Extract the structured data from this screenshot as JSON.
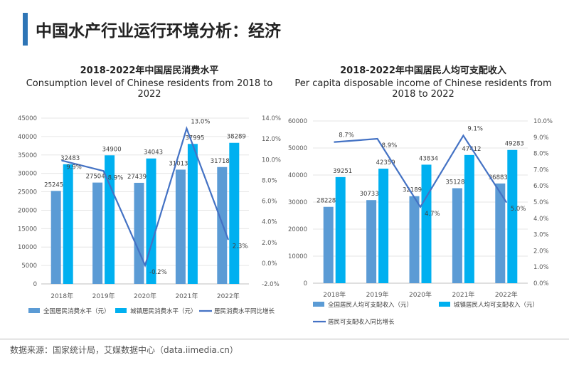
{
  "page_title": "中国水产行业运行环境分析：经济",
  "source": "数据来源：国家统计局，艾媒数据中心（data.iimedia.cn）",
  "colors": {
    "accent": "#2e75b6",
    "bar_national": "#5b9bd5",
    "bar_urban": "#00b0f0",
    "line": "#4472c4"
  },
  "chart_data": [
    {
      "type": "bar",
      "title": "2018-2022年中国居民消费水平",
      "subtitle": "Consumption level of Chinese residents from 2018 to 2022",
      "categories": [
        "2018年",
        "2019年",
        "2020年",
        "2021年",
        "2022年"
      ],
      "series": [
        {
          "name": "全国居民消费水平（元）",
          "type": "bar",
          "axis": "left",
          "values": [
            25245,
            27504,
            27439,
            31013,
            31718
          ]
        },
        {
          "name": "城镇居民消费水平（元）",
          "type": "bar",
          "axis": "left",
          "values": [
            32483,
            34900,
            34043,
            37995,
            38289
          ]
        },
        {
          "name": "居民消费水平同比增长",
          "type": "line",
          "axis": "right",
          "values": [
            9.9,
            8.9,
            -0.2,
            13.0,
            2.3
          ],
          "labels": [
            "9.9%",
            "8.9%",
            "-0.2%",
            "13.0%",
            "2.3%"
          ]
        }
      ],
      "ylim": [
        0,
        45000
      ],
      "yticks": [
        "0",
        "5000",
        "10000",
        "15000",
        "20000",
        "25000",
        "30000",
        "35000",
        "40000",
        "45000"
      ],
      "y2lim": [
        -2,
        14
      ],
      "y2ticks": [
        "-2.0%",
        "0.0%",
        "2.0%",
        "4.0%",
        "6.0%",
        "8.0%",
        "10.0%",
        "12.0%",
        "14.0%"
      ],
      "grid": true,
      "legend": "bottom"
    },
    {
      "type": "bar",
      "title": "2018-2022年中国居民人均可支配收入",
      "subtitle": "Per capita disposable income of Chinese residents from 2018 to 2022",
      "categories": [
        "2018年",
        "2019年",
        "2020年",
        "2021年",
        "2022年"
      ],
      "series": [
        {
          "name": "全国居民人均可支配收入（元）",
          "type": "bar",
          "axis": "left",
          "values": [
            28228,
            30733,
            32189,
            35128,
            36883
          ]
        },
        {
          "name": "城镇居民人均可支配收入（元）",
          "type": "bar",
          "axis": "left",
          "values": [
            39251,
            42359,
            43834,
            47412,
            49283
          ]
        },
        {
          "name": "居民可支配收入同比增长",
          "type": "line",
          "axis": "right",
          "values": [
            8.7,
            8.9,
            4.7,
            9.1,
            5.0
          ],
          "labels": [
            "8.7%",
            "8.9%",
            "4.7%",
            "9.1%",
            "5.0%"
          ]
        }
      ],
      "ylim": [
        0,
        60000
      ],
      "yticks": [
        "0",
        "10000",
        "20000",
        "30000",
        "40000",
        "50000",
        "60000"
      ],
      "y2lim": [
        0,
        10
      ],
      "y2ticks": [
        "0.0%",
        "1.0%",
        "2.0%",
        "3.0%",
        "4.0%",
        "5.0%",
        "6.0%",
        "7.0%",
        "8.0%",
        "9.0%",
        "10.0%"
      ],
      "grid": true,
      "legend": "bottom"
    }
  ]
}
